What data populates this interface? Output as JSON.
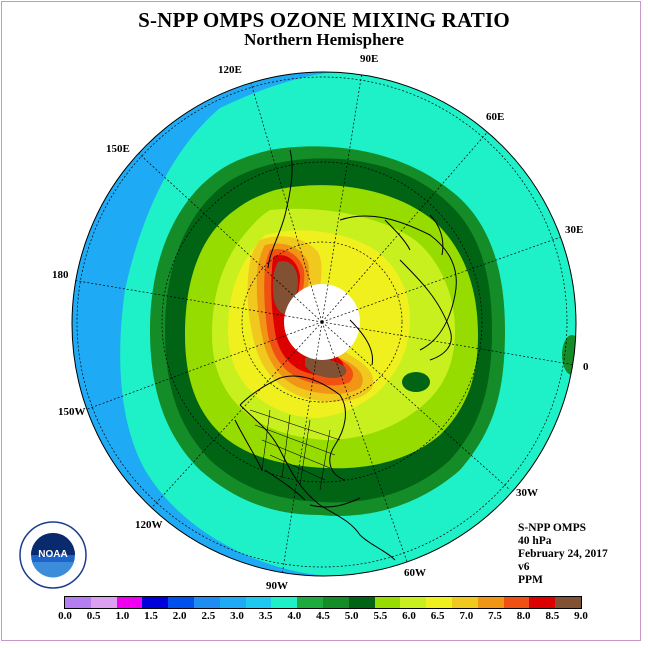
{
  "title": "S-NPP OMPS OZONE MIXING RATIO",
  "subtitle": "Northern Hemisphere",
  "meridian_labels": [
    "90E",
    "60E",
    "30E",
    "0",
    "30W",
    "60W",
    "90W",
    "120W",
    "150W",
    "180",
    "150E",
    "120E"
  ],
  "info": {
    "instrument": "S-NPP OMPS",
    "level": "40 hPa",
    "date": "February 24, 2017",
    "version": "v6",
    "units": "PPM"
  },
  "logo": {
    "text": "NOAA",
    "icon": "noaa-logo"
  },
  "colorbar": {
    "tick_labels": [
      "0.0",
      "0.5",
      "1.0",
      "1.5",
      "2.0",
      "2.5",
      "3.0",
      "3.5",
      "4.0",
      "4.5",
      "5.0",
      "5.5",
      "6.0",
      "6.5",
      "7.0",
      "7.5",
      "8.0",
      "8.5",
      "9.0"
    ],
    "colors": [
      "#b47df0",
      "#dca0f0",
      "#f000f0",
      "#0000dc",
      "#0050f0",
      "#1e8cf0",
      "#1eaaf5",
      "#1ec8f0",
      "#1ef0c8",
      "#1eaa3c",
      "#148c28",
      "#006414",
      "#96dc00",
      "#c8f01e",
      "#f0f01e",
      "#f0c81e",
      "#f09614",
      "#f05014",
      "#dc0000",
      "#825032"
    ]
  }
}
